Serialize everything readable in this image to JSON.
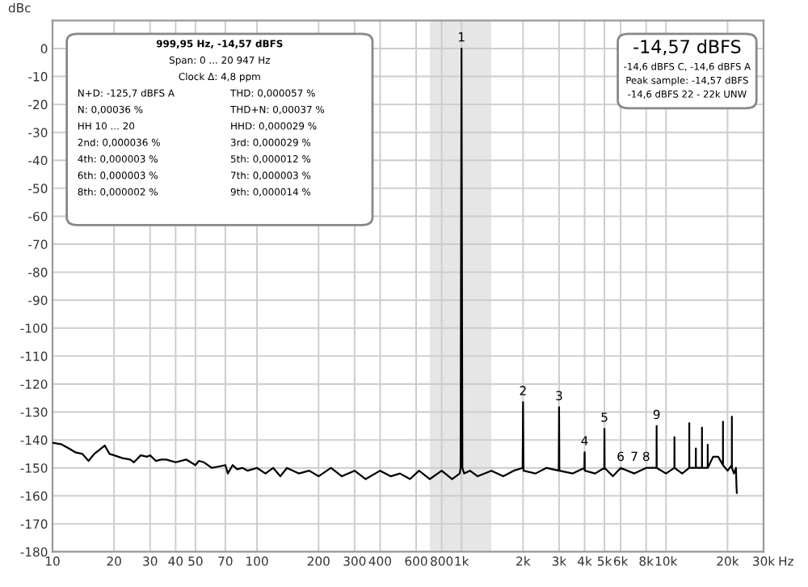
{
  "chart_data": {
    "type": "line",
    "ylabel": "dBc",
    "xlim": [
      10,
      30000
    ],
    "ylim": [
      -180,
      10
    ],
    "xticks": [
      10,
      20,
      30,
      40,
      50,
      70,
      100,
      200,
      300,
      400,
      {
        "value": 600,
        "label": "600"
      },
      {
        "value": 800,
        "label": "800"
      },
      {
        "value": 1000,
        "label": "1k"
      },
      {
        "value": 2000,
        "label": "2k"
      },
      {
        "value": 3000,
        "label": "3k"
      },
      {
        "value": 4000,
        "label": "4k"
      },
      {
        "value": 5000,
        "label": "5k"
      },
      {
        "value": 6000,
        "label": "6k"
      },
      {
        "value": 8000,
        "label": "8k"
      },
      {
        "value": 10000,
        "label": "10k"
      },
      {
        "value": 20000,
        "label": "20k"
      },
      {
        "value": 30000,
        "label": "30k"
      }
    ],
    "xlabel": "Hz",
    "yticks": [
      -180,
      -170,
      -160,
      -150,
      -140,
      -130,
      -120,
      -110,
      -100,
      -90,
      -80,
      -70,
      -60,
      -50,
      -40,
      -30,
      -20,
      -10,
      0
    ],
    "log": "x",
    "grid": true,
    "legend": false,
    "marker": "none",
    "line_style": "solid",
    "bands": [
      {
        "axis": "x",
        "from": 700,
        "to": 1400,
        "color": "#e6e6e6"
      }
    ],
    "series": [
      {
        "color": "#000000",
        "x": [
          10,
          11,
          12,
          13,
          14,
          15,
          16,
          17,
          18,
          19,
          20,
          22,
          24,
          25,
          27,
          29,
          30,
          32,
          34,
          36,
          40,
          45,
          50,
          52,
          55,
          60,
          65,
          70,
          72,
          76,
          80,
          85,
          90,
          100,
          110,
          120,
          130,
          140,
          160,
          180,
          200,
          230,
          260,
          300,
          340,
          400,
          450,
          500,
          560,
          620,
          700,
          800,
          900,
          980,
          990,
          1000,
          1010,
          1030,
          1100,
          1200,
          1400,
          1600,
          1800,
          1990,
          2000,
          2010,
          2300,
          2600,
          2990,
          3000,
          3010,
          3500,
          3990,
          4000,
          4010,
          4500,
          4990,
          5000,
          5010,
          5500,
          6000,
          7000,
          8000,
          8990,
          9000,
          9010,
          10000,
          10990,
          11000,
          11010,
          12000,
          12990,
          13000,
          13010,
          13990,
          14000,
          14010,
          14990,
          15000,
          15010,
          15990,
          16000,
          16010,
          17000,
          18000,
          18990,
          19000,
          19010,
          20000,
          20990,
          21000,
          21010,
          21500,
          22000,
          22100,
          22200
        ],
        "values": [
          -141,
          -141.5,
          -143,
          -144.5,
          -145,
          -147.5,
          -145,
          -143.5,
          -142,
          -145,
          -145.5,
          -146.5,
          -147,
          -148,
          -145.5,
          -146,
          -145.5,
          -147.5,
          -147,
          -147,
          -148,
          -147,
          -149,
          -147.5,
          -148,
          -150,
          -149.5,
          -149,
          -152,
          -149,
          -150.5,
          -150,
          -151,
          -150,
          -152,
          -150,
          -153,
          -150,
          -152,
          -151,
          -153,
          -150,
          -153,
          -151,
          -154,
          -151,
          -153,
          -152,
          -154,
          -151,
          -154,
          -151,
          -154,
          -152,
          -150,
          0,
          -150,
          -152,
          -151,
          -153,
          -151,
          -153,
          -151,
          -150,
          -126.5,
          -151,
          -152,
          -150,
          -151,
          -128.3,
          -151,
          -152,
          -150,
          -144.4,
          -151,
          -152,
          -150,
          -136,
          -150,
          -153,
          -150,
          -152,
          -150,
          -150,
          -135,
          -150,
          -152,
          -150,
          -139,
          -150,
          -152,
          -150,
          -134,
          -150,
          -150,
          -143,
          -150,
          -150,
          -135.6,
          -150,
          -150,
          -141.7,
          -150,
          -146,
          -146,
          -149,
          -133.5,
          -149,
          -151,
          -149,
          -131.7,
          -150,
          -152,
          -150,
          -156,
          -159
        ]
      }
    ],
    "annotations": [
      "999,95 Hz, -14,57 dBFS",
      "Span: 0 ... 20 947 Hz",
      "Clock Δ: 4,8 ppm",
      "N+D: -125,7 dBFS A",
      "THD: 0,000057 %",
      "N: 0,00036 %",
      "THD+N: 0,00037 %",
      "HH 10 ... 20",
      "HHD: 0,000029 %",
      "2nd: 0,000036 %",
      "3rd: 0,000029 %",
      "4th: 0,000003 %",
      "5th: 0,000012 %",
      "6th: 0,000003 %",
      "7th: 0,000003 %",
      "8th: 0,000002 %",
      "9th: 0,000014 %",
      "-14,57 dBFS",
      "-14,6 dBFS C, -14,6 dBFS A",
      "Peak sample: -14,57 dBFS",
      "-14,6 dBFS 22 - 22k UNW",
      {
        "text": "1",
        "x": 1000,
        "y": 0
      },
      {
        "text": "2",
        "x": 2000,
        "y": -126.5
      },
      {
        "text": "3",
        "x": 3000,
        "y": -128.3
      },
      {
        "text": "4",
        "x": 4000,
        "y": -144.4
      },
      {
        "text": "5",
        "x": 5000,
        "y": -136
      },
      {
        "text": "6",
        "x": 6000,
        "y": -150
      },
      {
        "text": "7",
        "x": 7000,
        "y": -150
      },
      {
        "text": "8",
        "x": 8000,
        "y": -150
      },
      {
        "text": "9",
        "x": 9000,
        "y": -135
      }
    ]
  }
}
